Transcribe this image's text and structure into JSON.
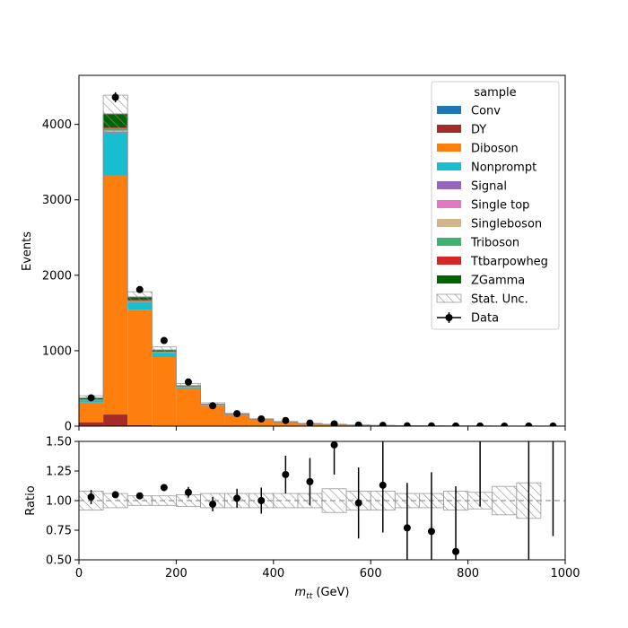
{
  "chart_data": [
    {
      "type": "bar",
      "stacked": true,
      "bin_width": 50,
      "xlim": [
        0,
        1000
      ],
      "ylim": [
        0,
        4650
      ],
      "ylabel": "Events",
      "yticks": [
        0,
        1000,
        2000,
        3000,
        4000
      ],
      "x_bin_edges": [
        0,
        50,
        100,
        150,
        200,
        250,
        300,
        350,
        400,
        450,
        500,
        550,
        600,
        650,
        700,
        750,
        800,
        850,
        900,
        950,
        1000
      ],
      "legend": {
        "title": "sample",
        "position": "top-right"
      },
      "series": [
        {
          "name": "Conv",
          "color": "#1f77b4",
          "values": [
            2,
            4,
            2,
            1,
            1,
            0,
            0,
            0,
            0,
            0,
            0,
            0,
            0,
            0,
            0,
            0,
            0,
            0,
            0,
            0
          ]
        },
        {
          "name": "DY",
          "color": "#a52a2a",
          "values": [
            50,
            150,
            10,
            5,
            2,
            1,
            0,
            0,
            0,
            0,
            0,
            0,
            0,
            0,
            0,
            0,
            0,
            0,
            0,
            0
          ]
        },
        {
          "name": "Diboson",
          "color": "#ff7f0e",
          "values": [
            260,
            3170,
            1530,
            910,
            490,
            270,
            150,
            85,
            55,
            33,
            22,
            14,
            9,
            6,
            5,
            3,
            3,
            2,
            2,
            1
          ]
        },
        {
          "name": "Nonprompt",
          "color": "#17becf",
          "values": [
            30,
            560,
            90,
            50,
            20,
            8,
            5,
            3,
            2,
            1,
            1,
            0,
            0,
            0,
            0,
            0,
            0,
            0,
            0,
            0
          ]
        },
        {
          "name": "Signal",
          "color": "#9467bd",
          "values": [
            3,
            20,
            10,
            6,
            4,
            2,
            1,
            1,
            0,
            0,
            0,
            0,
            0,
            0,
            0,
            0,
            0,
            0,
            0,
            0
          ]
        },
        {
          "name": "Single top",
          "color": "#e377c2",
          "values": [
            1,
            5,
            3,
            2,
            1,
            1,
            0,
            0,
            0,
            0,
            0,
            0,
            0,
            0,
            0,
            0,
            0,
            0,
            0,
            0
          ]
        },
        {
          "name": "Singleboson",
          "color": "#d2b48c",
          "values": [
            2,
            10,
            5,
            3,
            2,
            1,
            0,
            0,
            0,
            0,
            0,
            0,
            0,
            0,
            0,
            0,
            0,
            0,
            0,
            0
          ]
        },
        {
          "name": "Triboson",
          "color": "#3cb371",
          "values": [
            3,
            30,
            15,
            8,
            4,
            2,
            1,
            1,
            0,
            0,
            0,
            0,
            0,
            0,
            0,
            0,
            0,
            0,
            0,
            0
          ]
        },
        {
          "name": "Ttbarpowheg",
          "color": "#d62728",
          "values": [
            2,
            10,
            8,
            5,
            3,
            2,
            1,
            1,
            0,
            0,
            0,
            0,
            0,
            0,
            0,
            0,
            0,
            0,
            0,
            0
          ]
        },
        {
          "name": "ZGamma",
          "color": "#006400",
          "values": [
            20,
            180,
            40,
            20,
            10,
            5,
            2,
            1,
            1,
            0,
            0,
            0,
            0,
            0,
            0,
            0,
            0,
            0,
            0,
            0
          ]
        }
      ],
      "stat_unc": {
        "name": "Stat. Unc.",
        "color": "#808080",
        "rel": [
          0.08,
          0.06,
          0.04,
          0.04,
          0.05,
          0.06,
          0.06,
          0.06,
          0.06,
          0.06,
          0.1,
          0.08,
          0.08,
          0.06,
          0.06,
          0.08,
          0.07,
          0.12,
          0.15,
          0
        ]
      },
      "data": {
        "name": "Data",
        "color": "#000000",
        "values": [
          375,
          4360,
          1810,
          1135,
          585,
          270,
          165,
          95,
          75,
          40,
          30,
          15,
          10,
          4,
          3,
          2,
          1,
          0,
          1,
          1
        ],
        "errors": [
          20,
          66,
          43,
          34,
          24,
          16,
          13,
          10,
          9,
          6,
          5,
          4,
          3,
          2,
          2,
          1,
          1,
          0,
          1,
          1
        ]
      }
    },
    {
      "type": "scatter",
      "xlim": [
        0,
        1000
      ],
      "ylim": [
        0.5,
        1.5
      ],
      "xlabel": "m_tt (GeV)",
      "ylabel": "Ratio",
      "xticks": [
        0,
        200,
        400,
        600,
        800,
        1000
      ],
      "yticks": [
        "0.50",
        "0.75",
        "1.00",
        "1.25",
        "1.50"
      ],
      "reference_line": 1.0,
      "x": [
        25,
        75,
        125,
        175,
        225,
        275,
        325,
        375,
        425,
        475,
        525,
        575,
        625,
        675,
        725,
        775,
        825,
        875,
        925,
        975
      ],
      "ratio": [
        1.03,
        1.05,
        1.04,
        1.11,
        1.07,
        0.97,
        1.02,
        1.0,
        1.22,
        1.16,
        1.47,
        0.98,
        1.13,
        0.77,
        0.74,
        0.57,
        null,
        null,
        null,
        null
      ],
      "ratio_err": [
        0.06,
        0.02,
        0.025,
        0.03,
        0.045,
        0.06,
        0.08,
        0.11,
        0.16,
        0.2,
        0.25,
        0.3,
        0.4,
        0.38,
        0.5,
        0.55,
        null,
        null,
        null,
        null
      ],
      "error_only_bars": [
        {
          "x": 825,
          "low": 0.95,
          "high": 1.5
        },
        {
          "x": 925,
          "low": 0.5,
          "high": 1.5
        },
        {
          "x": 975,
          "low": 0.7,
          "high": 1.5
        }
      ],
      "stat_unc_band": {
        "rel": [
          0.08,
          0.06,
          0.04,
          0.04,
          0.05,
          0.06,
          0.06,
          0.06,
          0.06,
          0.06,
          0.1,
          0.08,
          0.08,
          0.06,
          0.06,
          0.08,
          0.07,
          0.12,
          0.15,
          0
        ]
      }
    }
  ]
}
